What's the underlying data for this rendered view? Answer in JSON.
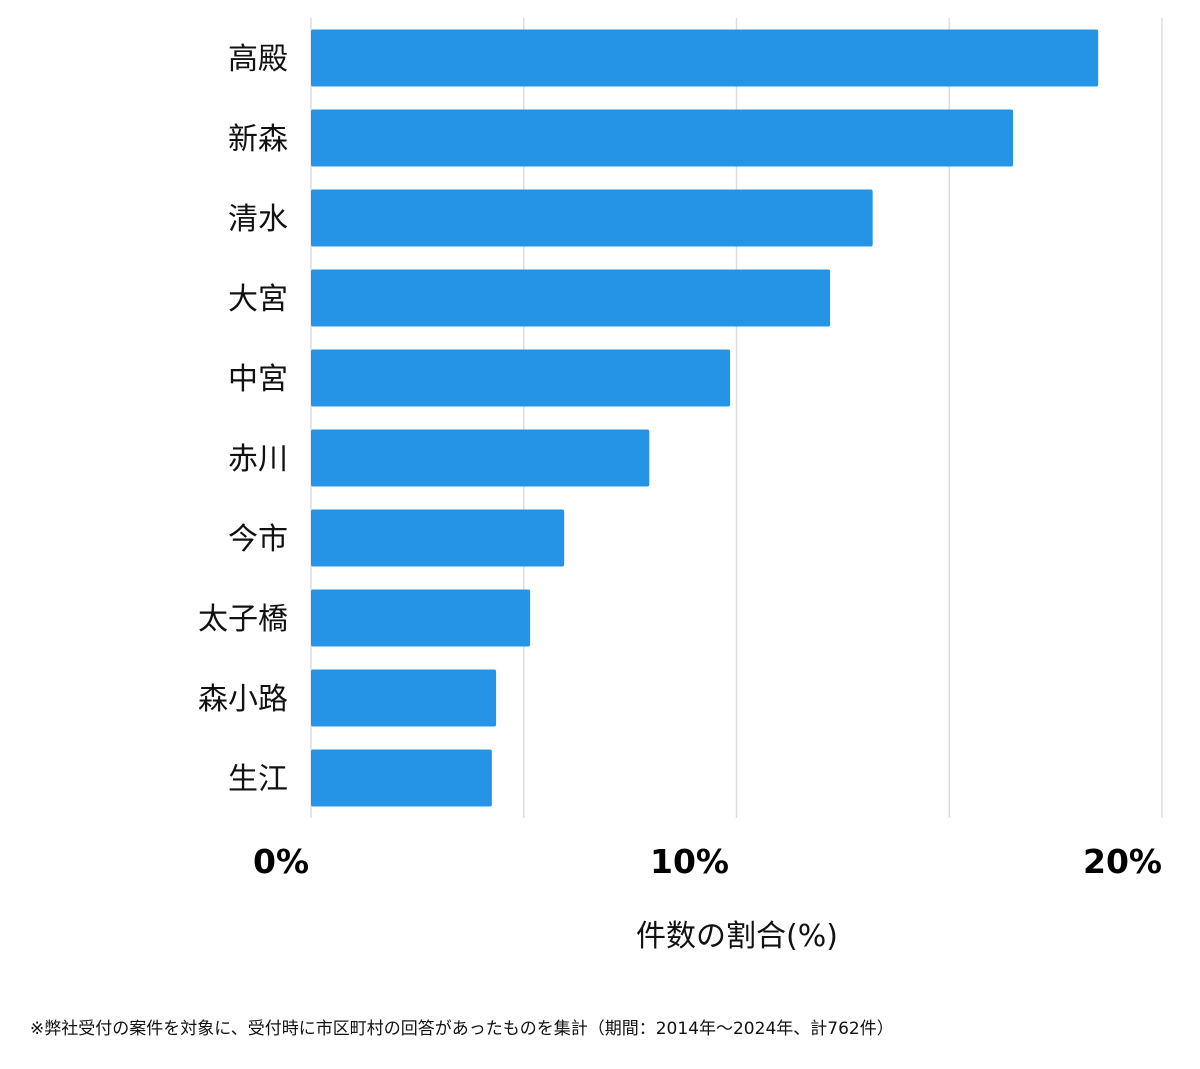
{
  "chart_data": {
    "type": "bar",
    "orientation": "horizontal",
    "categories": [
      "高殿",
      "新森",
      "清水",
      "大宮",
      "中宮",
      "赤川",
      "今市",
      "太子橋",
      "森小路",
      "生江"
    ],
    "values": [
      18.5,
      16.5,
      13.2,
      12.2,
      9.85,
      7.95,
      5.95,
      5.15,
      4.35,
      4.25
    ],
    "xlabel": "件数の割合(%)",
    "ylabel": "",
    "xlim": [
      0,
      20
    ],
    "xticks": [
      0,
      10,
      20
    ],
    "tick_labels": [
      "0%",
      "10%",
      "20%"
    ],
    "grid": true,
    "bar_color": "#2594e6"
  },
  "footnote": "※弊社受付の案件を対象に、受付時に市区町村の回答があったものを集計（期間：2014年〜2024年、計762件）"
}
